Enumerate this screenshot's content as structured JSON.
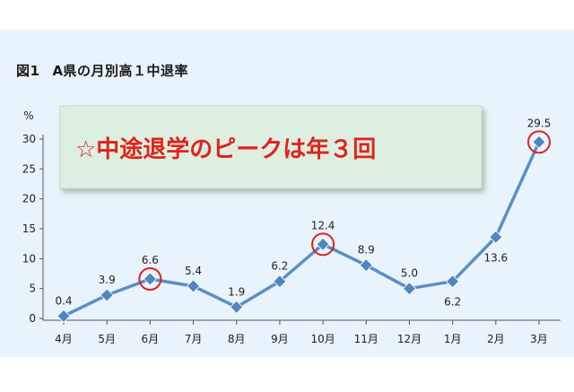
{
  "figure": {
    "label": "図1",
    "title": "A県の月別高１中退率"
  },
  "callout": {
    "text": "☆中途退学のピークは年３回"
  },
  "colors": {
    "line": "#5b8fc4",
    "marker": "#4f86bf",
    "highlight_circle": "#e02020",
    "callout_text": "#e1221c",
    "callout_bg": "#dcefe0",
    "axis": "#555555",
    "panel_bg": "#e9f3fb"
  },
  "chart_data": {
    "type": "line",
    "title": "A県の月別高１中退率",
    "ylabel": "%",
    "xlabel": "",
    "ylim": [
      0,
      30
    ],
    "yticks": [
      0,
      5,
      10,
      15,
      20,
      25,
      30
    ],
    "grid": false,
    "categories": [
      "4月",
      "5月",
      "6月",
      "7月",
      "8月",
      "9月",
      "10月",
      "11月",
      "12月",
      "1月",
      "2月",
      "3月"
    ],
    "values": [
      0.4,
      3.9,
      6.6,
      5.4,
      1.9,
      6.2,
      12.4,
      8.9,
      5.0,
      6.2,
      13.6,
      29.5
    ],
    "value_labels": [
      "0.4",
      "3.9",
      "6.6",
      "5.4",
      "1.9",
      "6.2",
      "12.4",
      "8.9",
      "5.0",
      "6.2",
      "13.6",
      "29.5"
    ],
    "label_below": [
      false,
      false,
      false,
      false,
      false,
      false,
      false,
      false,
      false,
      true,
      true,
      false
    ],
    "highlighted_categories": [
      "6月",
      "10月",
      "3月"
    ]
  }
}
